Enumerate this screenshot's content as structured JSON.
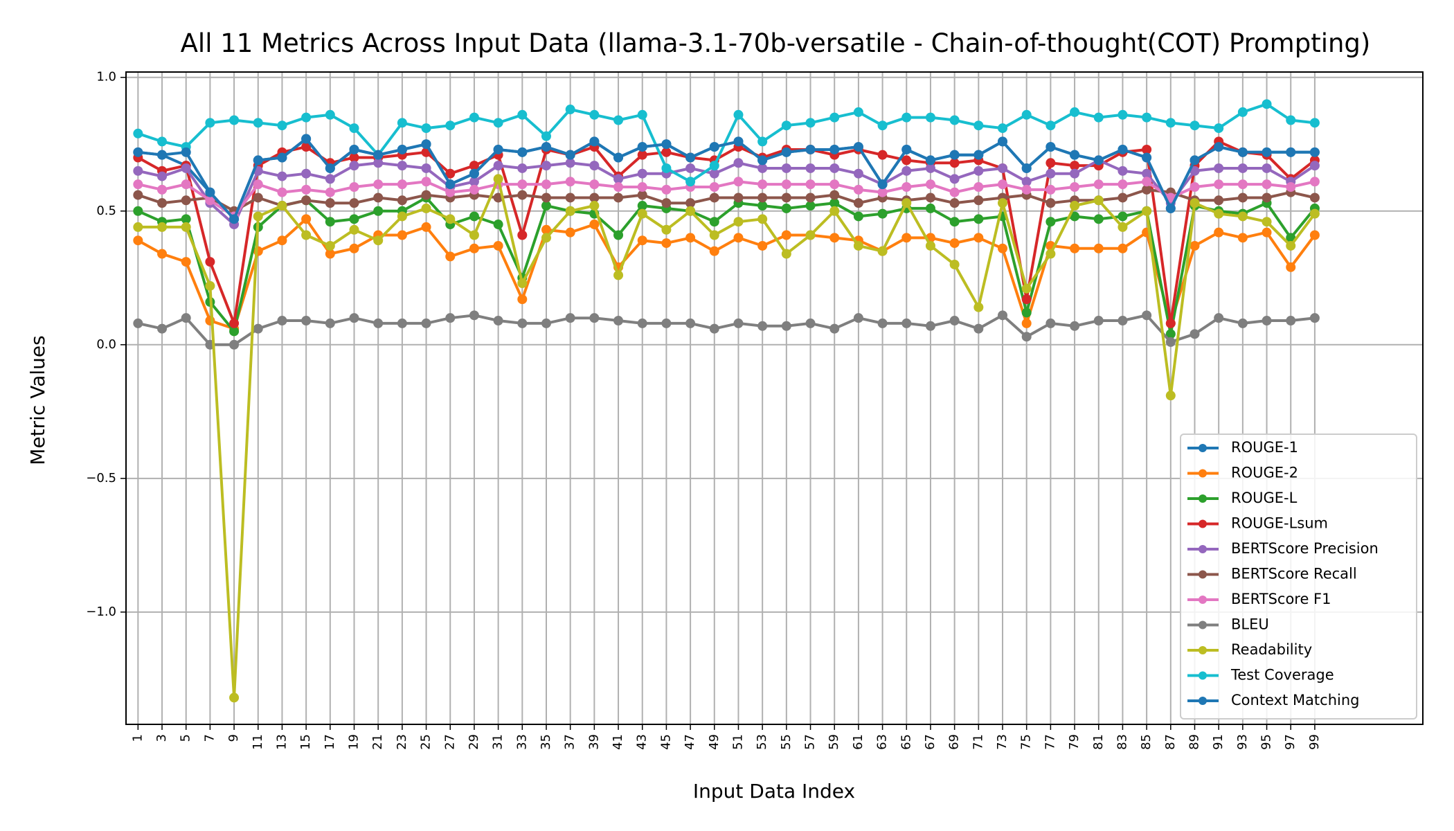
{
  "chart_data": {
    "type": "line",
    "title": "All 11 Metrics Across Input Data (llama-3.1-70b-versatile - Chain-of-thought(COT) Prompting)",
    "xlabel": "Input Data Index",
    "ylabel": "Metric Values",
    "ylim": [
      -1.42,
      1.02
    ],
    "xlim": [
      -0.5,
      53.5
    ],
    "grid": true,
    "legend_position": "lower-right",
    "x_tick_labels": [
      "1",
      "3",
      "5",
      "7",
      "9",
      "11",
      "13",
      "15",
      "17",
      "19",
      "21",
      "23",
      "25",
      "27",
      "29",
      "31",
      "33",
      "35",
      "37",
      "39",
      "41",
      "43",
      "45",
      "47",
      "49",
      "51",
      "53",
      "55",
      "57",
      "59",
      "61",
      "63",
      "65",
      "67",
      "69",
      "71",
      "73",
      "75",
      "77",
      "79",
      "81",
      "83",
      "85",
      "87",
      "89",
      "91",
      "93",
      "95",
      "97",
      "99"
    ],
    "y_ticks": [
      1.0,
      0.5,
      0.0,
      -0.5,
      -1.0
    ],
    "y_tick_labels": [
      "1.0",
      "0.5",
      "0.0",
      "−0.5",
      "−1.0"
    ],
    "series": [
      {
        "name": "ROUGE-1",
        "color": "#1f77b4",
        "values": [
          0.72,
          0.71,
          0.67,
          0.57,
          0.47,
          0.69,
          0.7,
          0.77,
          0.66,
          0.73,
          0.71,
          0.73,
          0.75,
          0.6,
          0.64,
          0.73,
          0.72,
          0.74,
          0.71,
          0.76,
          0.7,
          0.74,
          0.75,
          0.7,
          0.74,
          0.76,
          0.69,
          0.72,
          0.73,
          0.73,
          0.74,
          0.6,
          0.73,
          0.69,
          0.71,
          0.71,
          0.76,
          0.66,
          0.74,
          0.71,
          0.69,
          0.73,
          0.7,
          0.51,
          0.69,
          0.74,
          0.72,
          0.72,
          0.72,
          0.72
        ]
      },
      {
        "name": "ROUGE-2",
        "color": "#ff7f0e",
        "values": [
          0.39,
          0.34,
          0.31,
          0.09,
          0.06,
          0.35,
          0.39,
          0.47,
          0.34,
          0.36,
          0.41,
          0.41,
          0.44,
          0.33,
          0.36,
          0.37,
          0.17,
          0.43,
          0.42,
          0.45,
          0.29,
          0.39,
          0.38,
          0.4,
          0.35,
          0.4,
          0.37,
          0.41,
          0.41,
          0.4,
          0.39,
          0.35,
          0.4,
          0.4,
          0.38,
          0.4,
          0.36,
          0.08,
          0.37,
          0.36,
          0.36,
          0.36,
          0.42,
          0.08,
          0.37,
          0.42,
          0.4,
          0.42,
          0.29,
          0.41
        ]
      },
      {
        "name": "ROUGE-L",
        "color": "#2ca02c",
        "values": [
          0.5,
          0.46,
          0.47,
          0.16,
          0.05,
          0.44,
          0.52,
          0.54,
          0.46,
          0.47,
          0.5,
          0.5,
          0.55,
          0.45,
          0.48,
          0.45,
          0.25,
          0.52,
          0.5,
          0.49,
          0.41,
          0.52,
          0.51,
          0.5,
          0.46,
          0.53,
          0.52,
          0.51,
          0.52,
          0.53,
          0.48,
          0.49,
          0.51,
          0.51,
          0.46,
          0.47,
          0.48,
          0.12,
          0.46,
          0.48,
          0.47,
          0.48,
          0.5,
          0.04,
          0.52,
          0.5,
          0.49,
          0.53,
          0.4,
          0.51
        ]
      },
      {
        "name": "ROUGE-Lsum",
        "color": "#d62728",
        "values": [
          0.7,
          0.65,
          0.67,
          0.31,
          0.08,
          0.67,
          0.72,
          0.74,
          0.68,
          0.7,
          0.7,
          0.71,
          0.72,
          0.64,
          0.67,
          0.71,
          0.41,
          0.73,
          0.71,
          0.74,
          0.63,
          0.71,
          0.72,
          0.7,
          0.69,
          0.74,
          0.7,
          0.73,
          0.73,
          0.71,
          0.73,
          0.71,
          0.69,
          0.68,
          0.68,
          0.69,
          0.66,
          0.17,
          0.68,
          0.67,
          0.67,
          0.72,
          0.73,
          0.08,
          0.67,
          0.76,
          0.72,
          0.71,
          0.62,
          0.69
        ]
      },
      {
        "name": "BERTScore Precision",
        "color": "#9467bd",
        "values": [
          0.65,
          0.63,
          0.66,
          0.53,
          0.45,
          0.65,
          0.63,
          0.64,
          0.62,
          0.67,
          0.68,
          0.67,
          0.66,
          0.59,
          0.61,
          0.67,
          0.66,
          0.67,
          0.68,
          0.67,
          0.62,
          0.64,
          0.64,
          0.66,
          0.64,
          0.68,
          0.66,
          0.66,
          0.66,
          0.66,
          0.64,
          0.6,
          0.65,
          0.66,
          0.62,
          0.65,
          0.66,
          0.61,
          0.64,
          0.64,
          0.69,
          0.65,
          0.64,
          0.53,
          0.65,
          0.66,
          0.66,
          0.66,
          0.61,
          0.67
        ]
      },
      {
        "name": "BERTScore Recall",
        "color": "#8c564b",
        "values": [
          0.56,
          0.53,
          0.54,
          0.55,
          0.5,
          0.55,
          0.52,
          0.54,
          0.53,
          0.53,
          0.55,
          0.54,
          0.56,
          0.55,
          0.56,
          0.55,
          0.56,
          0.55,
          0.55,
          0.55,
          0.55,
          0.56,
          0.53,
          0.53,
          0.55,
          0.55,
          0.55,
          0.55,
          0.55,
          0.56,
          0.53,
          0.55,
          0.54,
          0.55,
          0.53,
          0.54,
          0.55,
          0.56,
          0.53,
          0.54,
          0.54,
          0.55,
          0.58,
          0.57,
          0.54,
          0.54,
          0.55,
          0.55,
          0.57,
          0.55
        ]
      },
      {
        "name": "BERTScore F1",
        "color": "#e377c2",
        "values": [
          0.6,
          0.58,
          0.6,
          0.54,
          0.48,
          0.6,
          0.57,
          0.58,
          0.57,
          0.59,
          0.6,
          0.6,
          0.61,
          0.57,
          0.58,
          0.6,
          0.6,
          0.6,
          0.61,
          0.6,
          0.59,
          0.59,
          0.58,
          0.59,
          0.59,
          0.61,
          0.6,
          0.6,
          0.6,
          0.6,
          0.58,
          0.57,
          0.59,
          0.6,
          0.57,
          0.59,
          0.6,
          0.58,
          0.58,
          0.59,
          0.6,
          0.6,
          0.61,
          0.55,
          0.59,
          0.6,
          0.6,
          0.6,
          0.59,
          0.61
        ]
      },
      {
        "name": "BLEU",
        "color": "#7f7f7f",
        "values": [
          0.08,
          0.06,
          0.1,
          0.0,
          0.0,
          0.06,
          0.09,
          0.09,
          0.08,
          0.1,
          0.08,
          0.08,
          0.08,
          0.1,
          0.11,
          0.09,
          0.08,
          0.08,
          0.1,
          0.1,
          0.09,
          0.08,
          0.08,
          0.08,
          0.06,
          0.08,
          0.07,
          0.07,
          0.08,
          0.06,
          0.1,
          0.08,
          0.08,
          0.07,
          0.09,
          0.06,
          0.11,
          0.03,
          0.08,
          0.07,
          0.09,
          0.09,
          0.11,
          0.01,
          0.04,
          0.1,
          0.08,
          0.09,
          0.09,
          0.1
        ]
      },
      {
        "name": "Readability",
        "color": "#bcbd22",
        "values": [
          0.44,
          0.44,
          0.44,
          0.22,
          -1.32,
          0.48,
          0.52,
          0.41,
          0.37,
          0.43,
          0.39,
          0.48,
          0.51,
          0.47,
          0.41,
          0.62,
          0.23,
          0.4,
          0.5,
          0.52,
          0.26,
          0.49,
          0.43,
          0.5,
          0.41,
          0.46,
          0.47,
          0.34,
          0.41,
          0.5,
          0.37,
          0.35,
          0.53,
          0.37,
          0.3,
          0.14,
          0.53,
          0.21,
          0.34,
          0.52,
          0.54,
          0.44,
          0.5,
          -0.19,
          0.53,
          0.49,
          0.48,
          0.46,
          0.37,
          0.49
        ]
      },
      {
        "name": "Test Coverage",
        "color": "#17becf",
        "values": [
          0.79,
          0.76,
          0.74,
          0.83,
          0.84,
          0.83,
          0.82,
          0.85,
          0.86,
          0.81,
          0.71,
          0.83,
          0.81,
          0.82,
          0.85,
          0.83,
          0.86,
          0.78,
          0.88,
          0.86,
          0.84,
          0.86,
          0.66,
          0.61,
          0.67,
          0.86,
          0.76,
          0.82,
          0.83,
          0.85,
          0.87,
          0.82,
          0.85,
          0.85,
          0.84,
          0.82,
          0.81,
          0.86,
          0.82,
          0.87,
          0.85,
          0.86,
          0.85,
          0.83,
          0.82,
          0.81,
          0.87,
          0.9,
          0.84,
          0.83
        ]
      },
      {
        "name": "Context Matching",
        "color": "#1f77b4",
        "values": [
          0.72,
          0.71,
          0.72,
          0.57,
          0.47,
          0.69,
          0.7,
          0.77,
          0.66,
          0.73,
          0.71,
          0.73,
          0.75,
          0.6,
          0.64,
          0.73,
          0.72,
          0.74,
          0.71,
          0.76,
          0.7,
          0.74,
          0.75,
          0.7,
          0.74,
          0.76,
          0.69,
          0.72,
          0.73,
          0.73,
          0.74,
          0.6,
          0.73,
          0.69,
          0.71,
          0.71,
          0.76,
          0.66,
          0.74,
          0.71,
          0.69,
          0.73,
          0.7,
          0.51,
          0.69,
          0.74,
          0.72,
          0.72,
          0.72,
          0.72
        ]
      }
    ]
  }
}
